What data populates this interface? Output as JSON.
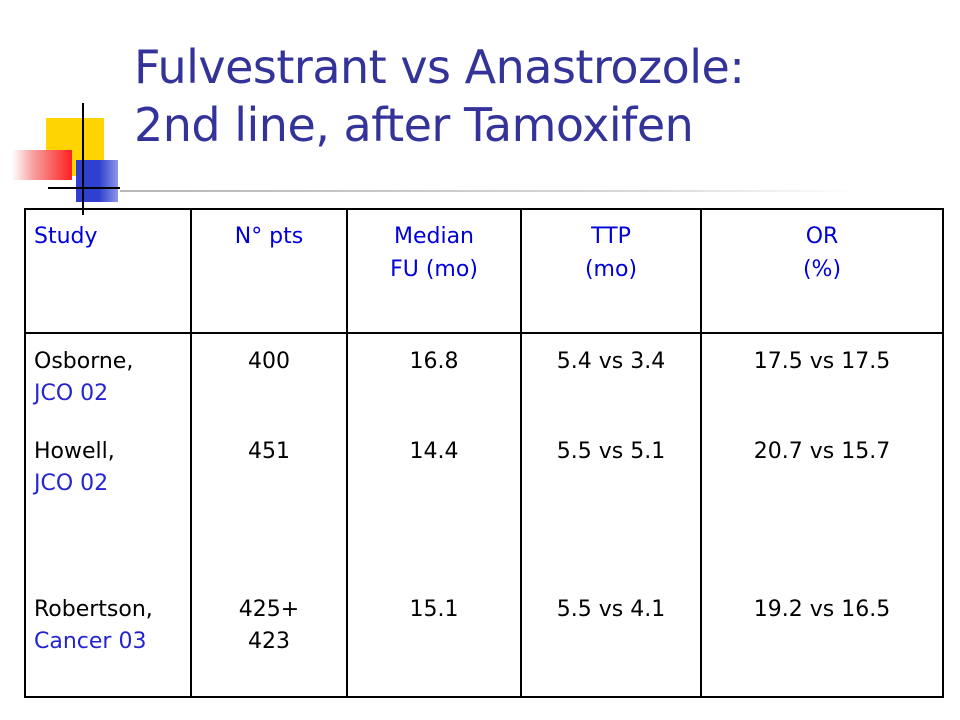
{
  "slide": {
    "title_line1": "Fulvestrant vs Anastrozole:",
    "title_line2": "2nd line, after Tamoxifen"
  },
  "table": {
    "headers": [
      {
        "line1": "Study",
        "line2": ""
      },
      {
        "line1": "N° pts",
        "line2": ""
      },
      {
        "line1": "Median",
        "line2": "FU (mo)"
      },
      {
        "line1": "TTP",
        "line2": "(mo)"
      },
      {
        "line1": "OR",
        "line2": "(%)"
      }
    ],
    "rows": [
      {
        "study": "Osborne,",
        "ref": "JCO 02",
        "pts": "400",
        "pts2": "",
        "fu": "16.8",
        "ttp": "5.4 vs 3.4",
        "or": "17.5 vs 17.5"
      },
      {
        "study": "Howell,",
        "ref": "JCO 02",
        "pts": "451",
        "pts2": "",
        "fu": "14.4",
        "ttp": "5.5 vs 5.1",
        "or": "20.7 vs 15.7"
      },
      {
        "study": "Robertson,",
        "ref": "Cancer 03",
        "pts": "425+",
        "pts2": "423",
        "fu": "15.1",
        "ttp": "5.5 vs 4.1",
        "or": "19.2 vs 16.5"
      }
    ]
  },
  "colors": {
    "title": "#333399",
    "header_text": "#0000d8",
    "reference_text": "#2424d0",
    "decoration": [
      "#ffd400",
      "#2f3fd0",
      "#ff2020"
    ]
  }
}
